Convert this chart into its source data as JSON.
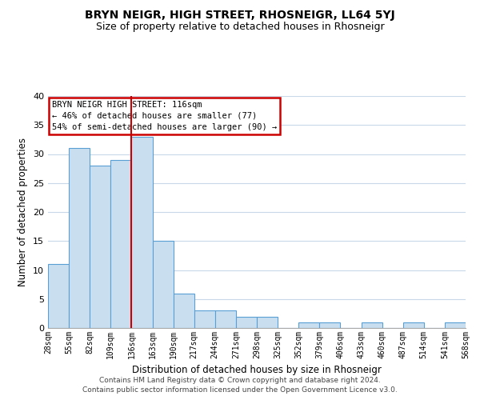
{
  "title": "BRYN NEIGR, HIGH STREET, RHOSNEIGR, LL64 5YJ",
  "subtitle": "Size of property relative to detached houses in Rhosneigr",
  "xlabel": "Distribution of detached houses by size in Rhosneigr",
  "ylabel": "Number of detached properties",
  "bar_values": [
    11,
    31,
    28,
    29,
    33,
    15,
    6,
    3,
    3,
    2,
    2,
    0,
    1,
    1,
    0,
    1,
    0,
    1,
    0,
    1
  ],
  "bin_labels": [
    "28sqm",
    "55sqm",
    "82sqm",
    "109sqm",
    "136sqm",
    "163sqm",
    "190sqm",
    "217sqm",
    "244sqm",
    "271sqm",
    "298sqm",
    "325sqm",
    "352sqm",
    "379sqm",
    "406sqm",
    "433sqm",
    "460sqm",
    "487sqm",
    "514sqm",
    "541sqm",
    "568sqm"
  ],
  "bar_color": "#c9dff0",
  "bar_edge_color": "#5a9fd4",
  "ylim": [
    0,
    40
  ],
  "yticks": [
    0,
    5,
    10,
    15,
    20,
    25,
    30,
    35,
    40
  ],
  "red_line_x": 4,
  "annotation_line1": "BRYN NEIGR HIGH STREET: 116sqm",
  "annotation_line2": "← 46% of detached houses are smaller (77)",
  "annotation_line3": "54% of semi-detached houses are larger (90) →",
  "annotation_box_edge": "#cc0000",
  "red_line_color": "#cc0000",
  "footnote1": "Contains HM Land Registry data © Crown copyright and database right 2024.",
  "footnote2": "Contains public sector information licensed under the Open Government Licence v3.0.",
  "background_color": "#ffffff",
  "grid_color": "#c8d8e8",
  "title_fontsize": 10,
  "subtitle_fontsize": 9
}
